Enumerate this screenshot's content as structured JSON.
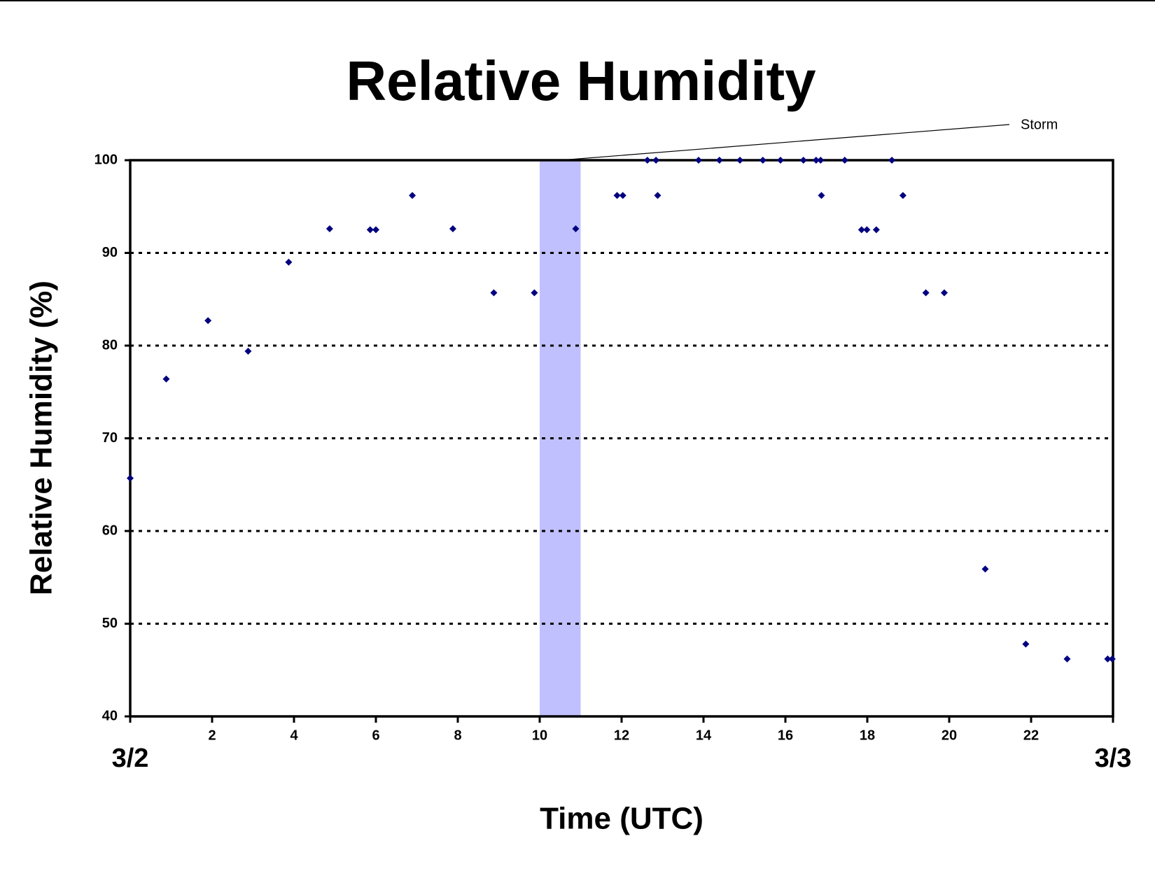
{
  "chart_data": {
    "type": "scatter",
    "title": "Relative Humidity",
    "x_label": "Time (UTC)",
    "y_label": "Relative Humidity (%)",
    "x_start_label": "3/2",
    "x_end_label": "3/3",
    "series": [
      {
        "name": "Relative Humidity",
        "color": "#000080",
        "x": [
          0,
          0.88,
          1.9,
          2.88,
          3.87,
          4.87,
          5.86,
          6.0,
          6.89,
          7.88,
          8.88,
          9.87,
          10.88,
          11.89,
          12.03,
          12.63,
          12.84,
          12.88,
          13.88,
          14.39,
          14.89,
          15.45,
          15.88,
          16.44,
          16.75,
          16.86,
          16.88,
          17.45,
          17.86,
          17.99,
          18.22,
          18.6,
          18.87,
          19.43,
          19.88,
          20.88,
          21.87,
          22.88,
          23.87,
          23.98
        ],
        "values": [
          65.7,
          76.4,
          82.7,
          79.4,
          89.0,
          92.6,
          92.5,
          92.5,
          96.2,
          92.6,
          85.7,
          85.7,
          92.6,
          96.2,
          96.2,
          100,
          100,
          96.2,
          100,
          100,
          100,
          100,
          100,
          100,
          100,
          100,
          96.2,
          100,
          92.5,
          92.5,
          92.5,
          100,
          96.2,
          85.7,
          85.7,
          55.9,
          47.8,
          46.2,
          46.2,
          46.2
        ]
      }
    ],
    "storm": {
      "label": "Storm",
      "x": [
        10,
        11
      ],
      "color": "#c0c0ff"
    },
    "xlim": [
      0,
      24
    ],
    "xticks": [
      2,
      4,
      6,
      8,
      10,
      12,
      14,
      16,
      18,
      20,
      22
    ],
    "ylim": [
      40,
      100
    ],
    "yticks": [
      40,
      50,
      60,
      70,
      80,
      90,
      100
    ],
    "grid": true
  }
}
